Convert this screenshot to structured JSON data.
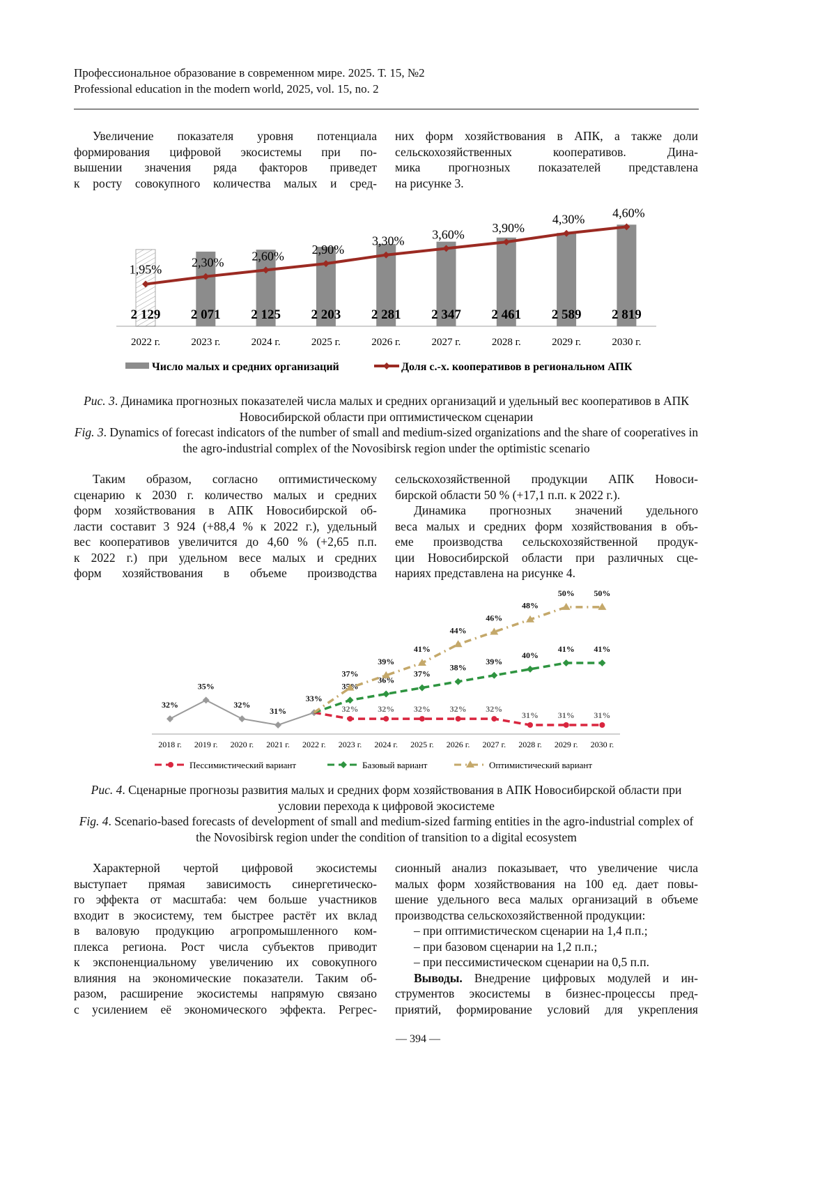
{
  "header": {
    "line1": "Профессиональное образование в современном мире. 2025. Т. 15, №2",
    "line2": "Professional education in the modern world, 2025, vol. 15, no. 2"
  },
  "text1": {
    "left": [
      {
        "t": "Увеличение показателя уровня потенциала",
        "ind": 1
      },
      {
        "t": "формирования цифровой экосистемы при по-"
      },
      {
        "t": "вышении значения ряда факторов приведет"
      },
      {
        "t": "к росту совокупного количества малых и сред-"
      }
    ],
    "right": [
      {
        "t": "них форм хозяйствования в АПК, а также доли"
      },
      {
        "t": "сельскохозяйственных кооперативов. Дина-"
      },
      {
        "t": "мика прогнозных показателей представлена"
      },
      {
        "t": "на рисунке 3.",
        "last": 1
      }
    ]
  },
  "fig3_caption": {
    "ru_label": "Рис. 3",
    "ru": ". Динамика прогнозных показателей числа малых и средних организаций и удельный вес кооперативов в АПК Новосибирской области при оптимистическом сценарии",
    "en_label": "Fig. 3",
    "en": ". Dynamics of forecast indicators of the number of small and medium-sized organizations and the share of cooperatives in the agro-industrial complex of the Novosibirsk region under the optimistic scenario"
  },
  "text2": {
    "left": [
      {
        "t": "Таким образом, согласно оптимистическому",
        "ind": 1
      },
      {
        "t": "сценарию к 2030 г. количество малых и средних"
      },
      {
        "t": "форм хозяйствования в АПК Новосибирской об-"
      },
      {
        "t": "ласти составит 3 924 (+88,4 % к 2022 г.), удельный"
      },
      {
        "t": "вес кооперативов увеличится до 4,60 % (+2,65 п.п."
      },
      {
        "t": "к 2022 г.) при удельном весе малых и средних"
      },
      {
        "t": "форм хозяйствования в объеме производства"
      }
    ],
    "right": [
      {
        "t": "сельскохозяйственной продукции АПК Новоси-"
      },
      {
        "t": "бирской области 50 % (+17,1 п.п. к 2022 г.).",
        "last": 1
      },
      {
        "t": "Динамика прогнозных значений удельного",
        "ind": 1
      },
      {
        "t": "веса малых и средних форм хозяйствования в объ-"
      },
      {
        "t": "еме производства сельскохозяйственной продук-"
      },
      {
        "t": "ции Новосибирской области при различных сце-"
      },
      {
        "t": "нариях представлена на рисунке 4.",
        "last": 1
      }
    ]
  },
  "fig4_caption": {
    "ru_label": "Рис. 4",
    "ru": ". Сценарные прогнозы развития малых и средних форм хозяйствования в АПК Новосибирской области при условии перехода к цифровой экосистеме",
    "en_label": "Fig. 4",
    "en": ". Scenario-based forecasts of development of small and medium-sized farming entities in the agro-industrial complex of the Novosibirsk region under the condition of transition to a digital ecosystem"
  },
  "text3": {
    "left": [
      {
        "t": "Характерной чертой цифровой экосистемы",
        "ind": 1
      },
      {
        "t": "выступает прямая зависимость синергетическо-"
      },
      {
        "t": "го эффекта от масштаба: чем больше участников"
      },
      {
        "t": "входит в экосистему, тем быстрее растёт их вклад"
      },
      {
        "t": "в валовую продукцию агропромышленного ком-"
      },
      {
        "t": "плекса региона. Рост числа субъектов приводит"
      },
      {
        "t": "к экспоненциальному увеличению их совокупного"
      },
      {
        "t": "влияния на экономические показатели. Таким об-"
      },
      {
        "t": "разом, расширение экосистемы напрямую связано"
      },
      {
        "t": "с усилением её экономического эффекта. Регрес-"
      }
    ],
    "right": [
      {
        "t": "сионный анализ показывает, что увеличение числа"
      },
      {
        "t": "малых форм хозяйствования на 100 ед. дает повы-"
      },
      {
        "t": "шение удельного веса малых организаций в объеме"
      },
      {
        "t": "производства сельскохозяйственной продукции:",
        "last": 1
      },
      {
        "t": "– при оптимистическом сценарии на 1,4 п.п.;",
        "dash": 1
      },
      {
        "t": "– при базовом сценарии на 1,2 п.п.;",
        "dash": 1
      },
      {
        "t": "– при пессимистическом сценарии на 0,5 п.п.",
        "dash": 1
      },
      {
        "b": "Выводы.",
        "t": " Внедрение цифровых модулей и ин-",
        "ind": 1
      },
      {
        "t": "струментов экосистемы в бизнес-процессы пред-"
      },
      {
        "t": "приятий, формирование условий для укрепления"
      }
    ]
  },
  "page_number": "— 394 —",
  "chart_data": [
    {
      "type": "bar+line",
      "categories": [
        "2022 г.",
        "2023 г.",
        "2024 г.",
        "2025 г.",
        "2026 г.",
        "2027 г.",
        "2028 г.",
        "2029 г.",
        "2030 г."
      ],
      "series": [
        {
          "name": "Число малых и средних организаций",
          "type": "bar",
          "values": [
            2129,
            2071,
            2125,
            2203,
            2281,
            2347,
            2461,
            2589,
            2819
          ],
          "labels": [
            "2 129",
            "2 071",
            "2 125",
            "2 203",
            "2 281",
            "2 347",
            "2 461",
            "2 589",
            "2 819"
          ],
          "color": "#8c8c8c",
          "first_bar_style": "hatched"
        },
        {
          "name": "Доля с.-х. кооперативов в региональном АПК",
          "type": "line",
          "values": [
            1.95,
            2.3,
            2.6,
            2.9,
            3.3,
            3.6,
            3.9,
            4.3,
            4.6
          ],
          "labels": [
            "1,95%",
            "2,30%",
            "2,60%",
            "2,90%",
            "3,30%",
            "3,60%",
            "3,90%",
            "4,30%",
            "4,60%"
          ],
          "color": "#9b2a22",
          "marker": "diamond"
        }
      ],
      "legend": "bottom",
      "grid": false
    },
    {
      "type": "line",
      "categories": [
        "2018 г.",
        "2019 г.",
        "2020 г.",
        "2021 г.",
        "2022 г.",
        "2023 г.",
        "2024 г.",
        "2025 г.",
        "2026 г.",
        "2027 г.",
        "2028 г.",
        "2029 г.",
        "2030 г."
      ],
      "series": [
        {
          "type": "line",
          "values": [
            32,
            35,
            32,
            31,
            33,
            null,
            null,
            null,
            null,
            null,
            null,
            null,
            null
          ],
          "color": "#9a9a9a",
          "marker": "diamond",
          "style": "solid"
        },
        {
          "name": "Пессимистический вариант",
          "values": [
            null,
            null,
            null,
            null,
            33,
            32,
            32,
            32,
            32,
            32,
            31,
            31,
            31
          ],
          "color": "#d9263f",
          "marker": "circle",
          "style": "dashed"
        },
        {
          "name": "Базовый вариант",
          "values": [
            null,
            null,
            null,
            null,
            33,
            35,
            36,
            37,
            38,
            39,
            40,
            41,
            41
          ],
          "color": "#2e9440",
          "marker": "diamond",
          "style": "dashed"
        },
        {
          "name": "Оптимистический вариант",
          "values": [
            null,
            null,
            null,
            null,
            33,
            37,
            39,
            41,
            44,
            46,
            48,
            50,
            50
          ],
          "color": "#c4a86a",
          "marker": "triangle",
          "style": "dash-dot"
        }
      ],
      "unit": "%",
      "legend": "bottom",
      "grid": false
    }
  ]
}
